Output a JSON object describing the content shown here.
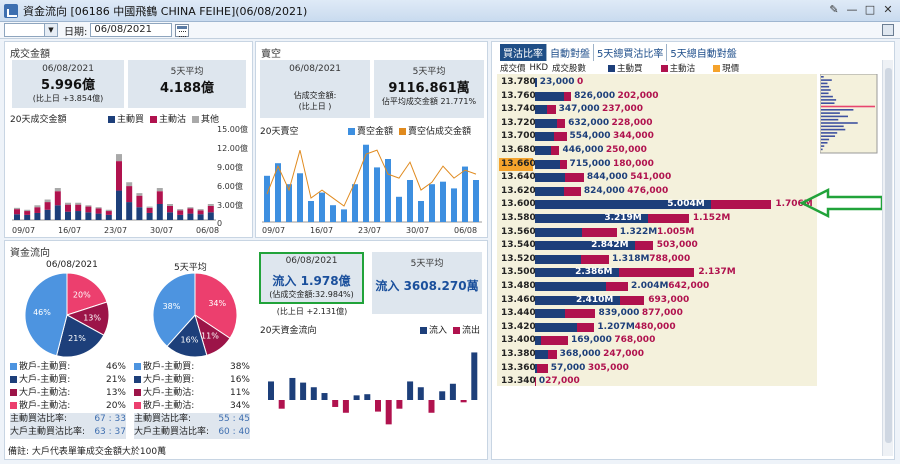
{
  "window": {
    "title": "資金流向 [06186  中國飛鶴  CHINA FEIHE](06/08/2021)",
    "controls": [
      "✎",
      "—",
      "□",
      "✕"
    ]
  },
  "toolbar": {
    "date_label": "日期:",
    "date_value": "06/08/2021"
  },
  "turnover": {
    "header": "成交金額",
    "today": {
      "date": "06/08/2021",
      "value": "5.996億",
      "sub": "(比上日 +3.854億)"
    },
    "avg5": {
      "title": "5天平均",
      "value": "4.188億"
    },
    "chart_title": "20天成交金額",
    "legend": [
      "主動買",
      "主動沽",
      "其他"
    ],
    "yticks": [
      "15.00億",
      "12.00億",
      "9.00億",
      "6.00億",
      "3.00億",
      "0"
    ],
    "xticks": [
      "09/07",
      "16/07",
      "23/07",
      "30/07",
      "06/08"
    ]
  },
  "short": {
    "header": "賣空",
    "today": {
      "date": "06/08/2021",
      "l1": "佔成交金額:",
      "l2": "(比上日 )"
    },
    "avg5": {
      "title": "5天平均",
      "value": "9116.861萬",
      "sub": "佔平均成交金額 21.771%"
    },
    "chart_title": "20天賣空",
    "legend": [
      "賣空金額",
      "賣空佔成交金額"
    ],
    "xticks": [
      "09/07",
      "16/07",
      "23/07",
      "30/07",
      "06/08"
    ]
  },
  "flow": {
    "header": "資金流向",
    "pie1_title": "06/08/2021",
    "pie2_title": "5天平均",
    "pie1_labels": [
      "20%",
      "13%",
      "21%",
      "46%"
    ],
    "pie2_labels": [
      "34%",
      "11%",
      "16%",
      "38%"
    ],
    "rows": [
      {
        "k": "散戶-主動買:",
        "a": "46%",
        "b": "38%"
      },
      {
        "k": "大戶-主動買:",
        "a": "21%",
        "b": "16%"
      },
      {
        "k": "大戶-主動沽:",
        "a": "13%",
        "b": "11%"
      },
      {
        "k": "散戶-主動沽:",
        "a": "20%",
        "b": "34%"
      }
    ],
    "ratio1": {
      "k": "主動買沽比率:",
      "a": "67 : 33",
      "b": "55 : 45"
    },
    "ratio2": {
      "k": "大戶主動買沽比率:",
      "a": "63 : 37",
      "b": "60 : 40"
    },
    "today": {
      "date": "06/08/2021",
      "value": "流入 1.978億",
      "sub1": "(佔成交金額:32.984%)",
      "sub2": "(比上日 +2.131億)"
    },
    "avg5": {
      "title": "5天平均",
      "value": "流入 3608.270萬"
    },
    "chart_title": "20天資金流向",
    "legend": [
      "流入",
      "流出"
    ]
  },
  "note": "備註: 大戶代表單筆成交金額大於100萬",
  "tabs": [
    "買沽比率",
    "自動對盤",
    "5天總買沽比率",
    "5天總自動對盤"
  ],
  "price_panel": {
    "col1": "成交價",
    "col2": "HKD",
    "col3": "成交股數",
    "legend": [
      "主動買",
      "主動沽",
      "現價"
    ]
  },
  "price_rows": [
    {
      "p": "13.780",
      "b": "23,000",
      "s": "0",
      "bw": 0.01,
      "sw": 0,
      "hl": false
    },
    {
      "p": "13.760",
      "b": "826,000",
      "s": "202,000",
      "bw": 0.165,
      "sw": 0.04,
      "hl": false
    },
    {
      "p": "13.740",
      "b": "347,000",
      "s": "237,000",
      "bw": 0.07,
      "sw": 0.047,
      "hl": false
    },
    {
      "p": "13.720",
      "b": "632,000",
      "s": "228,000",
      "bw": 0.126,
      "sw": 0.045,
      "hl": false
    },
    {
      "p": "13.700",
      "b": "554,000",
      "s": "344,000",
      "bw": 0.11,
      "sw": 0.069,
      "hl": false
    },
    {
      "p": "13.680",
      "b": "446,000",
      "s": "250,000",
      "bw": 0.089,
      "sw": 0.05,
      "hl": false
    },
    {
      "p": "13.660",
      "b": "715,000",
      "s": "180,000",
      "bw": 0.143,
      "sw": 0.036,
      "hl": true
    },
    {
      "p": "13.640",
      "b": "844,000",
      "s": "541,000",
      "bw": 0.169,
      "sw": 0.108,
      "hl": false
    },
    {
      "p": "13.620",
      "b": "824,000",
      "s": "476,000",
      "bw": 0.165,
      "sw": 0.095,
      "hl": false
    },
    {
      "p": "13.600",
      "b": "5.004M",
      "s": "1.706M",
      "bw": 1.0,
      "sw": 0.341,
      "hl": false
    },
    {
      "p": "13.580",
      "b": "3.219M",
      "s": "1.152M",
      "bw": 0.643,
      "sw": 0.23,
      "hl": false
    },
    {
      "p": "13.560",
      "b": "1.322M",
      "s": "1.005M",
      "bw": 0.264,
      "sw": 0.2,
      "hl": false
    },
    {
      "p": "13.540",
      "b": "2.842M",
      "s": "503,000",
      "bw": 0.568,
      "sw": 0.1,
      "hl": false
    },
    {
      "p": "13.520",
      "b": "1.318M",
      "s": "788,000",
      "bw": 0.263,
      "sw": 0.157,
      "hl": false
    },
    {
      "p": "13.500",
      "b": "2.386M",
      "s": "2.137M",
      "bw": 0.477,
      "sw": 0.427,
      "hl": false
    },
    {
      "p": "13.480",
      "b": "2.004M",
      "s": "642,000",
      "bw": 0.4,
      "sw": 0.128,
      "hl": false
    },
    {
      "p": "13.460",
      "b": "2.410M",
      "s": "693,000",
      "bw": 0.482,
      "sw": 0.138,
      "hl": false
    },
    {
      "p": "13.440",
      "b": "839,000",
      "s": "877,000",
      "bw": 0.168,
      "sw": 0.175,
      "hl": false
    },
    {
      "p": "13.420",
      "b": "1.207M",
      "s": "480,000",
      "bw": 0.241,
      "sw": 0.096,
      "hl": false
    },
    {
      "p": "13.400",
      "b": "169,000",
      "s": "768,000",
      "bw": 0.034,
      "sw": 0.153,
      "hl": false
    },
    {
      "p": "13.380",
      "b": "368,000",
      "s": "247,000",
      "bw": 0.074,
      "sw": 0.049,
      "hl": false
    },
    {
      "p": "13.360",
      "b": "57,000",
      "s": "305,000",
      "bw": 0.011,
      "sw": 0.061,
      "hl": false
    },
    {
      "p": "13.340",
      "b": "0",
      "s": "27,000",
      "bw": 0,
      "sw": 0.005,
      "hl": false
    }
  ],
  "colors": {
    "buy": "#1d3f7a",
    "sell": "#b0124e",
    "other": "#a9a9a9",
    "blue": "#3d8fe0",
    "orange": "#e08a1e",
    "pink": "#e8456f",
    "pie_retail_buy": "#4d94e0",
    "pie_big_buy": "#1d3f7a",
    "pie_big_sell": "#9c1448",
    "pie_retail_sell": "#ec3f6e",
    "green": "#21a33a"
  },
  "series": {
    "turnover": {
      "buy": [
        0.9,
        0.8,
        1.1,
        1.6,
        2.3,
        1.3,
        1.4,
        1.2,
        1.0,
        0.8,
        4.6,
        2.8,
        2.0,
        1.1,
        2.5,
        1.2,
        0.8,
        1.0,
        0.9,
        1.2
      ],
      "sell": [
        0.8,
        0.6,
        0.9,
        1.2,
        2.2,
        1.1,
        1.0,
        0.9,
        0.8,
        0.6,
        4.6,
        2.5,
        1.8,
        0.8,
        2.0,
        1.0,
        0.7,
        0.8,
        0.6,
        1.0
      ],
      "other": [
        0.2,
        0.2,
        0.3,
        0.4,
        0.5,
        0.3,
        0.3,
        0.2,
        0.2,
        0.2,
        1.1,
        0.6,
        0.4,
        0.2,
        0.5,
        0.3,
        0.2,
        0.2,
        0.2,
        0.3
      ]
    },
    "short_amt": [
      0.55,
      0.7,
      0.45,
      0.58,
      0.25,
      0.35,
      0.2,
      0.15,
      0.45,
      0.92,
      0.65,
      0.75,
      0.3,
      0.5,
      0.25,
      0.45,
      0.48,
      0.4,
      0.66,
      0.5
    ],
    "short_pct": [
      0.35,
      0.7,
      0.4,
      0.9,
      0.3,
      0.4,
      0.3,
      0.2,
      0.5,
      0.85,
      0.9,
      0.6,
      0.55,
      0.75,
      0.4,
      0.5,
      0.7,
      0.55,
      0.65,
      0.6
    ],
    "flow": [
      0.32,
      -0.15,
      0.38,
      0.3,
      0.22,
      0.12,
      -0.12,
      -0.22,
      0.08,
      0.1,
      -0.2,
      -0.42,
      -0.15,
      0.32,
      0.22,
      -0.22,
      0.15,
      0.28,
      -0.04,
      0.82
    ]
  },
  "minihist": [
    0.05,
    0.2,
    0.12,
    0.15,
    0.18,
    0.14,
    0.22,
    0.28,
    0.25,
    1.0,
    0.6,
    0.35,
    0.5,
    0.32,
    0.68,
    0.42,
    0.45,
    0.3,
    0.26,
    0.15,
    0.12,
    0.06,
    0.03
  ]
}
